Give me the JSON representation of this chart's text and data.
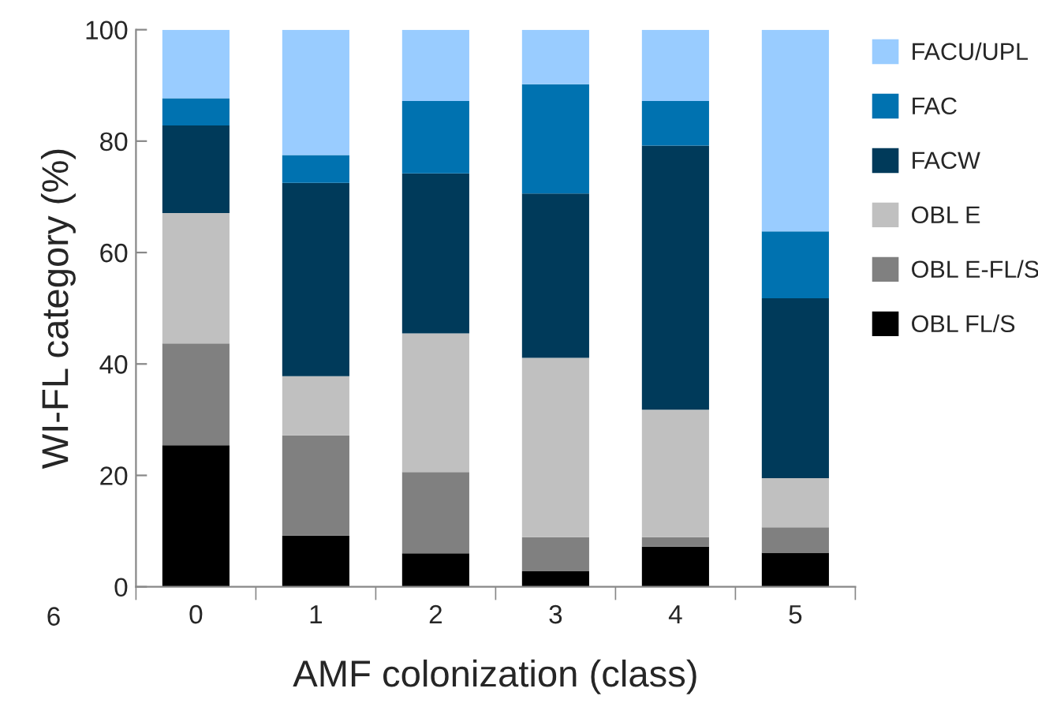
{
  "chart_data": {
    "type": "bar",
    "stacked": true,
    "xlabel": "AMF colonization (class)",
    "ylabel": "WI-FL category (%)",
    "categories": [
      "0",
      "1",
      "2",
      "3",
      "4",
      "5"
    ],
    "series": [
      {
        "name": "OBL FL/S",
        "color": "#000000",
        "values": [
          25.4,
          9.2,
          6.0,
          2.8,
          7.2,
          6.1
        ]
      },
      {
        "name": "OBL E-FL/S",
        "color": "#808080",
        "values": [
          18.3,
          18.0,
          14.6,
          6.1,
          1.7,
          4.6
        ]
      },
      {
        "name": "OBL E",
        "color": "#c0c0c0",
        "values": [
          23.4,
          10.6,
          24.9,
          32.2,
          22.9,
          8.8
        ]
      },
      {
        "name": "FACW",
        "color": "#003a5a",
        "values": [
          15.7,
          34.7,
          28.7,
          29.5,
          47.4,
          32.3
        ]
      },
      {
        "name": "FAC",
        "color": "#0072b0",
        "values": [
          4.9,
          5.0,
          13.0,
          19.6,
          8.0,
          12.0
        ]
      },
      {
        "name": "FACU/UPL",
        "color": "#99ccff",
        "values": [
          12.3,
          22.5,
          12.8,
          9.8,
          12.8,
          36.2
        ]
      }
    ],
    "ylim": [
      0,
      100
    ],
    "yticks": [
      0,
      20,
      40,
      60,
      80,
      100
    ],
    "grid": false,
    "legend": "right",
    "annotations": [
      "6"
    ]
  }
}
